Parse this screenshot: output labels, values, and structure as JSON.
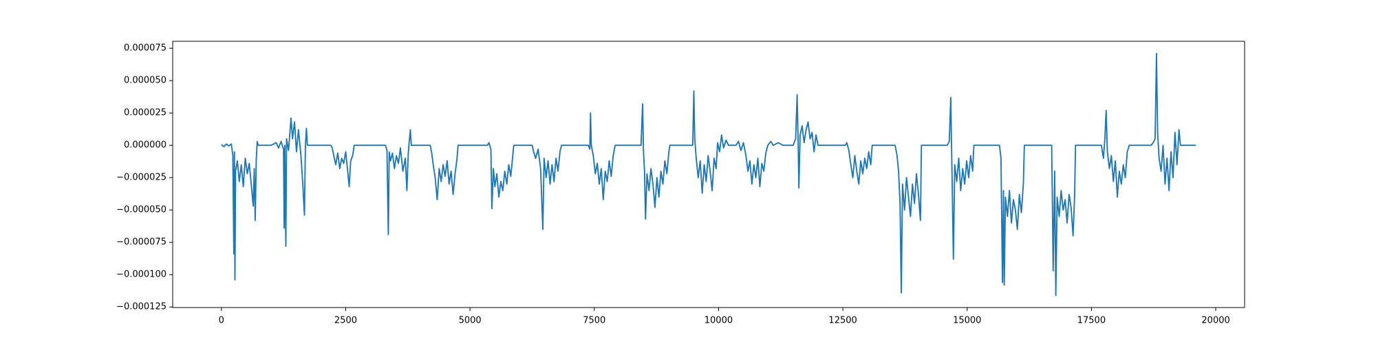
{
  "chart_data": {
    "type": "line",
    "color": "#1f77b4",
    "xlim": [
      -980,
      20580
    ],
    "ylim": [
      -0.0001254,
      8.04e-05
    ],
    "xticks": [
      0,
      2500,
      5000,
      7500,
      10000,
      12500,
      15000,
      17500,
      20000
    ],
    "yticks": [
      {
        "value": -0.000125,
        "label": "−0.000125"
      },
      {
        "value": -0.0001,
        "label": "−0.000100"
      },
      {
        "value": -7.5e-05,
        "label": "−0.000075"
      },
      {
        "value": -5e-05,
        "label": "−0.000050"
      },
      {
        "value": -2.5e-05,
        "label": "−0.000025"
      },
      {
        "value": 0,
        "label": "0.000000"
      },
      {
        "value": 2.5e-05,
        "label": "0.000025"
      },
      {
        "value": 5e-05,
        "label": "0.000050"
      },
      {
        "value": 7.5e-05,
        "label": "0.000075"
      }
    ],
    "x": [
      0,
      50,
      100,
      150,
      200,
      230,
      250,
      262,
      272,
      285,
      320,
      360,
      400,
      440,
      480,
      520,
      560,
      600,
      640,
      660,
      680,
      700,
      720,
      740,
      1000,
      1100,
      1150,
      1200,
      1250,
      1262,
      1275,
      1296,
      1310,
      1350,
      1400,
      1430,
      1470,
      1510,
      1550,
      1600,
      1640,
      1670,
      1690,
      1710,
      1730,
      2200,
      2230,
      2260,
      2300,
      2340,
      2380,
      2420,
      2460,
      2500,
      2540,
      2570,
      2600,
      2640,
      2670,
      3300,
      3330,
      3357,
      3375,
      3400,
      3440,
      3480,
      3520,
      3560,
      3600,
      3650,
      3700,
      3730,
      3760,
      3800,
      3820,
      4200,
      4230,
      4260,
      4300,
      4340,
      4380,
      4420,
      4460,
      4500,
      4540,
      4580,
      4620,
      4660,
      4700,
      4740,
      4760,
      5350,
      5380,
      5420,
      5440,
      5470,
      5500,
      5540,
      5580,
      5620,
      5660,
      5700,
      5740,
      5780,
      5820,
      5860,
      5880,
      6250,
      6280,
      6320,
      6370,
      6420,
      6465,
      6490,
      6530,
      6570,
      6610,
      6650,
      6690,
      6730,
      6770,
      6810,
      6840,
      7380,
      7410,
      7424,
      7440,
      7480,
      7520,
      7560,
      7600,
      7640,
      7680,
      7720,
      7760,
      7800,
      7840,
      7880,
      7920,
      8440,
      8472,
      8490,
      8510,
      8530,
      8560,
      8600,
      8640,
      8680,
      8720,
      8760,
      8800,
      8840,
      8880,
      8920,
      8960,
      9000,
      9020,
      9480,
      9502,
      9520,
      9550,
      9590,
      9630,
      9670,
      9710,
      9750,
      9790,
      9830,
      9870,
      9910,
      9950,
      9980,
      10020,
      10060,
      10100,
      10150,
      10200,
      10350,
      10400,
      10450,
      10500,
      10550,
      10590,
      10630,
      10670,
      10710,
      10750,
      10790,
      10830,
      10870,
      10910,
      10950,
      10990,
      11050,
      11100,
      11200,
      11300,
      11500,
      11550,
      11580,
      11600,
      11615,
      11640,
      11680,
      11720,
      11760,
      11800,
      11840,
      11880,
      11920,
      11960,
      12000,
      12550,
      12580,
      12620,
      12660,
      12700,
      12740,
      12780,
      12820,
      12860,
      12900,
      12940,
      12980,
      13020,
      13060,
      13090,
      13550,
      13590,
      13620,
      13650,
      13675,
      13700,
      13740,
      13780,
      13820,
      13860,
      13900,
      13940,
      13980,
      14020,
      14060,
      14080,
      14600,
      14640,
      14670,
      14690,
      14723,
      14750,
      14790,
      14830,
      14870,
      14910,
      14950,
      14990,
      15030,
      15070,
      15110,
      15135,
      15650,
      15680,
      15710,
      15730,
      15745,
      15770,
      15810,
      15850,
      15890,
      15930,
      15970,
      16010,
      16050,
      16090,
      16130,
      16150,
      16700,
      16730,
      16760,
      16783,
      16810,
      16850,
      16890,
      16930,
      16970,
      17010,
      17050,
      17090,
      17130,
      17160,
      17180,
      17700,
      17740,
      17770,
      17795,
      17820,
      17860,
      17900,
      17940,
      17980,
      18020,
      18060,
      18100,
      18140,
      18180,
      18220,
      18260,
      18700,
      18740,
      18780,
      18808,
      18830,
      18860,
      18900,
      18940,
      18980,
      19020,
      19060,
      19100,
      19140,
      19180,
      19220,
      19260,
      19290,
      19600
    ],
    "values": [
      5e-07,
      -1e-06,
      1e-06,
      -5e-07,
      1e-06,
      -8e-06,
      -8.4e-05,
      -5e-06,
      -0.000104,
      -2e-05,
      -1.2e-05,
      -2.8e-05,
      -1.5e-05,
      -3.2e-05,
      -1e-05,
      -2.2e-05,
      -1.4e-05,
      -3e-05,
      -4.7e-05,
      -1.8e-05,
      -5.8e-05,
      -1.2e-05,
      3e-06,
      0,
      0,
      2e-06,
      -2e-06,
      3e-06,
      -3e-06,
      -6.4e-05,
      0,
      -7.8e-05,
      5e-06,
      -4e-06,
      2.1e-05,
      5e-06,
      1.8e-05,
      -5e-06,
      1.2e-05,
      -8e-06,
      -3.2e-05,
      -5.4e-05,
      0,
      1.3e-05,
      0,
      0,
      -2e-06,
      -8e-06,
      -1.5e-05,
      -6e-06,
      -1.8e-05,
      -1e-05,
      -1.4e-05,
      -5e-06,
      -2e-05,
      -3.2e-05,
      -1.2e-05,
      -8e-06,
      0,
      0,
      -4e-06,
      -6.9e-05,
      -5e-06,
      -1.2e-05,
      -6e-06,
      -1.8e-05,
      -8e-06,
      -1.4e-05,
      -2e-06,
      -2e-05,
      -1e-05,
      -3.5e-05,
      -5e-06,
      1.2e-05,
      0,
      0,
      -6e-06,
      -1.5e-05,
      -2.5e-05,
      -4.2e-05,
      -1.8e-05,
      -2.8e-05,
      -1.5e-05,
      -2.4e-05,
      -1.2e-05,
      -3e-05,
      -2e-05,
      -3.8e-05,
      -2.2e-05,
      -1e-05,
      0,
      0,
      2e-06,
      -3e-06,
      -4.9e-05,
      -1.8e-05,
      -3.2e-05,
      -2.2e-05,
      -4e-05,
      -2.8e-05,
      -3.5e-05,
      -2e-05,
      -3e-05,
      -1.5e-05,
      -2.4e-05,
      -8e-06,
      0,
      0,
      -5e-06,
      -1e-05,
      -3e-06,
      -1.8e-05,
      -6.5e-05,
      -1e-05,
      -2.5e-05,
      -1.2e-05,
      -3e-05,
      -1.5e-05,
      -2.8e-05,
      -1e-05,
      -2e-05,
      -5e-06,
      0,
      0,
      -3e-06,
      2.5e-05,
      0,
      -8e-06,
      -2.2e-05,
      -1.4e-05,
      -3e-05,
      -1.8e-05,
      -4.2e-05,
      -2e-05,
      -2.8e-05,
      -1.2e-05,
      -2.4e-05,
      -8e-06,
      0,
      0,
      3.2e-05,
      -5e-06,
      -2e-05,
      -5.7e-05,
      -2.2e-05,
      -3.5e-05,
      -1.8e-05,
      -3e-05,
      -4.8e-05,
      -2.5e-05,
      -4e-05,
      -2e-05,
      -3e-05,
      -1.2e-05,
      -2.2e-05,
      -5e-06,
      0,
      0,
      4.2e-05,
      5e-06,
      -1e-05,
      -2.5e-05,
      -1.2e-05,
      -3.7e-05,
      -1.5e-05,
      -2.8e-05,
      -8e-06,
      -2e-05,
      -3.5e-05,
      -1e-05,
      -1.8e-05,
      2e-06,
      -5e-06,
      8e-06,
      -2e-06,
      4e-06,
      0,
      0,
      3e-06,
      -4e-06,
      2e-06,
      -8e-06,
      -2e-05,
      -1.2e-05,
      -3e-05,
      -1.5e-05,
      -2.5e-05,
      -1e-05,
      -3.2e-05,
      -1.4e-05,
      -2e-05,
      -6e-06,
      0,
      3e-06,
      0,
      2e-06,
      0,
      0,
      5e-06,
      3.9e-05,
      3e-06,
      -3.3e-05,
      8e-06,
      1.5e-05,
      2e-06,
      1.2e-05,
      1.8e-05,
      5e-06,
      1e-05,
      -5e-06,
      8e-06,
      0,
      0,
      2e-06,
      -4e-06,
      -1.5e-05,
      -2.5e-05,
      -8e-06,
      -2e-05,
      -3e-05,
      -1.2e-05,
      -2.2e-05,
      -1e-05,
      -1.8e-05,
      -5e-06,
      -1.5e-05,
      0,
      0,
      -8e-06,
      -2e-05,
      -4.5e-05,
      -0.000114,
      -3e-05,
      -5e-05,
      -2.5e-05,
      -4e-05,
      -5.5e-05,
      -3e-05,
      -4.5e-05,
      -2.2e-05,
      -3.8e-05,
      -5.8e-05,
      0,
      0,
      3e-06,
      3.7e-05,
      -1e-05,
      -8.8e-05,
      -1.5e-05,
      -2.8e-05,
      -1e-05,
      -3.5e-05,
      -1.8e-05,
      -3e-05,
      -1.2e-05,
      -2.5e-05,
      -8e-06,
      -2e-05,
      0,
      0,
      -1e-05,
      -0.000106,
      -3.5e-05,
      -0.000108,
      -4e-05,
      -5.5e-05,
      -3.5e-05,
      -6e-05,
      -4.2e-05,
      -5e-05,
      -6.5e-05,
      -3.8e-05,
      -5.2e-05,
      -3e-05,
      0,
      0,
      -9.7e-05,
      -2e-05,
      -0.000116,
      -4e-05,
      -5.5e-05,
      -3.5e-05,
      -5e-05,
      -4.2e-05,
      -6e-05,
      -3.8e-05,
      -4.8e-05,
      -7e-05,
      -4e-05,
      0,
      0,
      -1e-05,
      5e-06,
      2.7e-05,
      -5e-06,
      -1.8e-05,
      -8e-06,
      -2.8e-05,
      -1.2e-05,
      -4e-05,
      -2e-05,
      -3e-05,
      -1.5e-05,
      -2.5e-05,
      -5e-06,
      0,
      0,
      2e-06,
      5e-06,
      7.1e-05,
      1e-05,
      -1e-05,
      -2e-05,
      0,
      -3e-05,
      -1e-05,
      -3.5e-05,
      -5e-06,
      -2.5e-05,
      1e-05,
      -1.5e-05,
      1.2e-05,
      0,
      0
    ]
  }
}
